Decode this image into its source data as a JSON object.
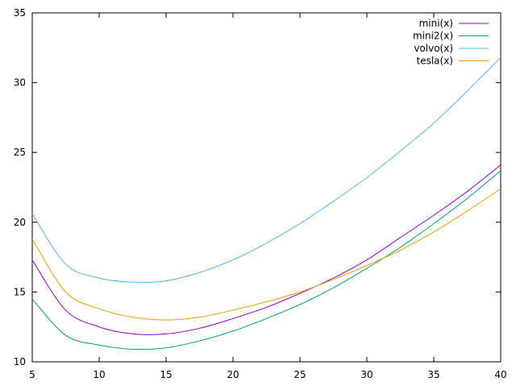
{
  "chart_data": {
    "type": "line",
    "title": "",
    "xlabel": "",
    "ylabel": "",
    "xlim": [
      5,
      40
    ],
    "ylim": [
      10,
      35
    ],
    "grid": false,
    "legend_placement": "top-right",
    "x_ticks": [
      5,
      10,
      15,
      20,
      25,
      30,
      35,
      40
    ],
    "y_ticks": [
      10,
      15,
      20,
      25,
      30,
      35
    ],
    "x": [
      5,
      7.5,
      10,
      12.5,
      15,
      17.5,
      20,
      22.5,
      25,
      27.5,
      30,
      32.5,
      35,
      37.5,
      40
    ],
    "series": [
      {
        "name": "mini(x)",
        "color": "#9400d3",
        "values": [
          17.3,
          13.7,
          12.5,
          12.0,
          12.0,
          12.4,
          13.1,
          13.9,
          14.9,
          16.0,
          17.3,
          18.9,
          20.5,
          22.2,
          24.1
        ]
      },
      {
        "name": "mini2(x)",
        "color": "#009e73",
        "values": [
          14.5,
          11.9,
          11.2,
          10.9,
          11.0,
          11.5,
          12.2,
          13.1,
          14.1,
          15.3,
          16.7,
          18.2,
          19.9,
          21.7,
          23.7
        ]
      },
      {
        "name": "volvo(x)",
        "color": "#56b4e9",
        "values": [
          20.6,
          17.0,
          16.0,
          15.7,
          15.8,
          16.4,
          17.3,
          18.5,
          19.9,
          21.5,
          23.2,
          25.1,
          27.1,
          29.4,
          31.8
        ]
      },
      {
        "name": "tesla(x)",
        "color": "#e69f00",
        "values": [
          18.8,
          15.0,
          13.8,
          13.2,
          13.0,
          13.2,
          13.7,
          14.3,
          15.0,
          15.9,
          16.9,
          18.0,
          19.3,
          20.8,
          22.4
        ]
      }
    ]
  }
}
